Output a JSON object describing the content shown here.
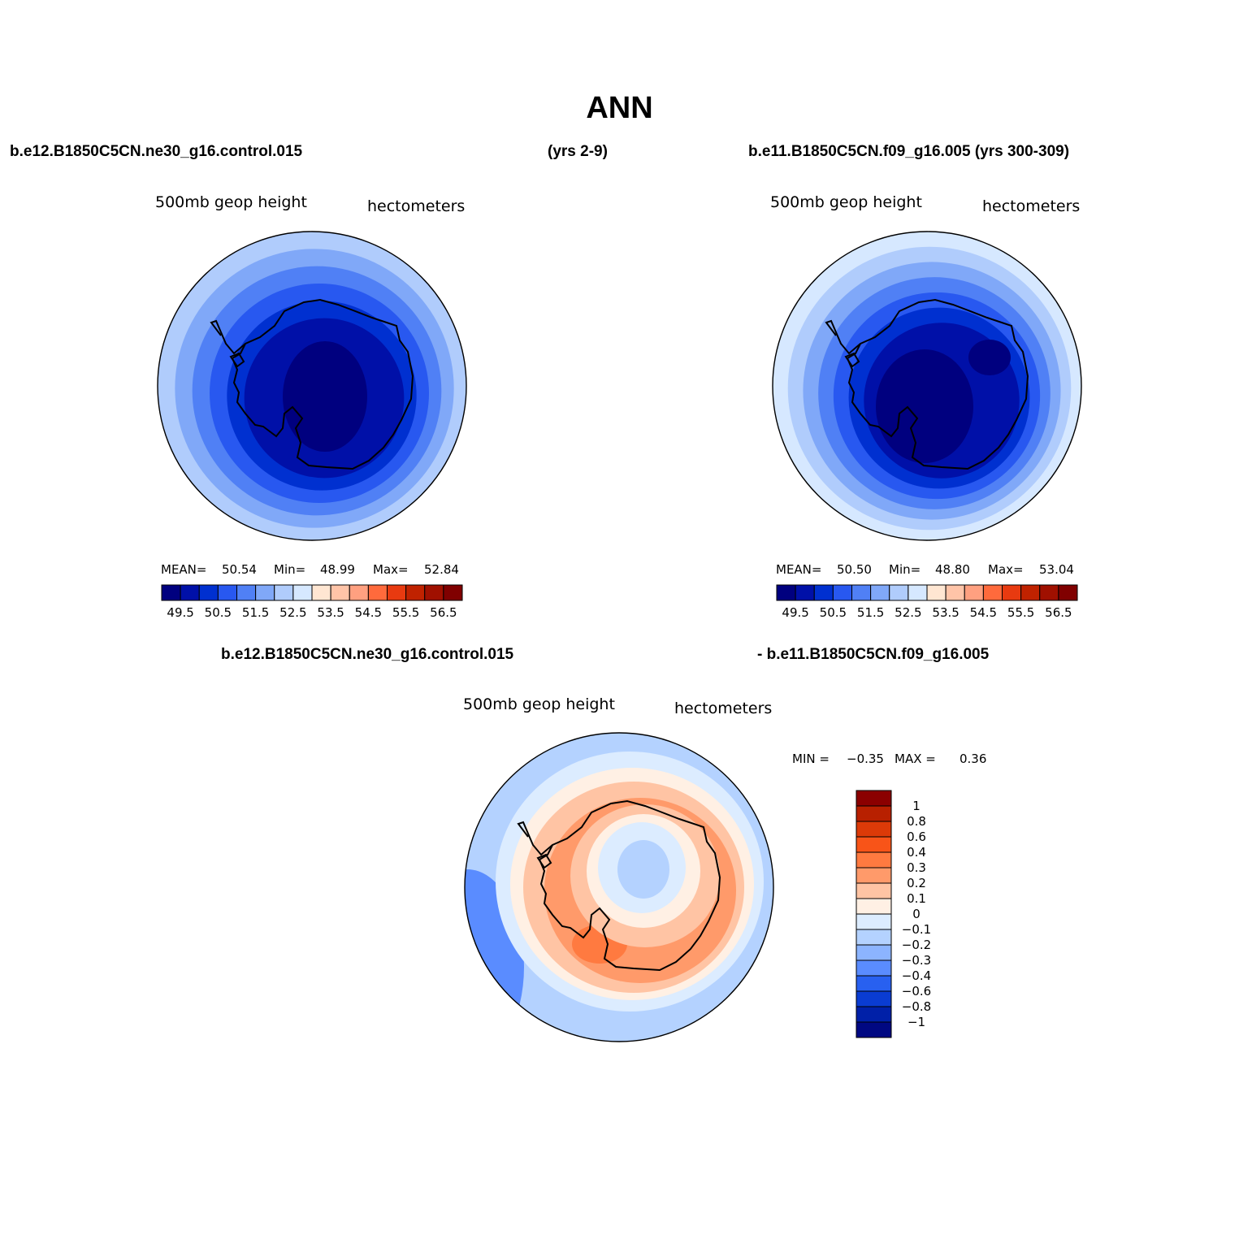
{
  "page": {
    "title": "ANN",
    "top_left_header": "b.e12.B1850C5CN.ne30_g16.control.015",
    "top_center_header": "(yrs 2-9)",
    "top_right_header": "b.e11.B1850C5CN.f09_g16.005 (yrs 300-309)",
    "bottom_left_header": "b.e12.B1850C5CN.ne30_g16.control.015",
    "bottom_right_header": "- b.e11.B1850C5CN.f09_g16.005"
  },
  "panels": [
    {
      "variable": "500mb  geop  height",
      "units": "hectometers",
      "stats": {
        "mean_label": "MEAN=",
        "mean": "50.54",
        "min_label": "Min=",
        "min": "48.99",
        "max_label": "Max=",
        "max": "52.84"
      },
      "field": {
        "pole_level": 0,
        "inner_level": 1,
        "outer_level": 6,
        "band_step": 1
      }
    },
    {
      "variable": "500mb  geop  height",
      "units": "hectometers",
      "stats": {
        "mean_label": "MEAN=",
        "mean": "50.50",
        "min_label": "Min=",
        "min": "48.80",
        "max_label": "Max=",
        "max": "53.04"
      },
      "field": {
        "pole_level": 0,
        "inner_level": 1,
        "outer_level": 7,
        "band_step": 1
      }
    }
  ],
  "panel_colorbar": {
    "colors": [
      "#00007f",
      "#0010a8",
      "#0030d0",
      "#2858f0",
      "#5080f5",
      "#80a8f8",
      "#b0ccfc",
      "#d6e8ff",
      "#ffe6d2",
      "#ffc4a8",
      "#ffa080",
      "#ff6a3c",
      "#e83a10",
      "#c02200",
      "#a01000",
      "#800000"
    ],
    "tick_labels": [
      "49.5",
      "50.5",
      "51.5",
      "52.5",
      "53.5",
      "54.5",
      "55.5",
      "56.5"
    ]
  },
  "diff_panel": {
    "variable": "500mb  geop  height",
    "units": "hectometers",
    "stats": {
      "min_label": "MIN =",
      "min": "−0.35",
      "max_label": "MAX =",
      "max": "0.36"
    },
    "colorbar": {
      "colors_top_to_bottom": [
        "#8b0000",
        "#b82000",
        "#dc3a08",
        "#f85418",
        "#ff7a40",
        "#ff9a6a",
        "#ffc4a4",
        "#fff0e4",
        "#dcecff",
        "#b4d2ff",
        "#8cb4ff",
        "#5a8cff",
        "#2860f0",
        "#0a3cd2",
        "#0020a8",
        "#000882"
      ],
      "tick_labels": [
        "1",
        "0.8",
        "0.6",
        "0.4",
        "0.3",
        "0.2",
        "0.1",
        "0",
        "−0.1",
        "−0.2",
        "−0.3",
        "−0.4",
        "−0.6",
        "−0.8",
        "−1"
      ]
    }
  }
}
